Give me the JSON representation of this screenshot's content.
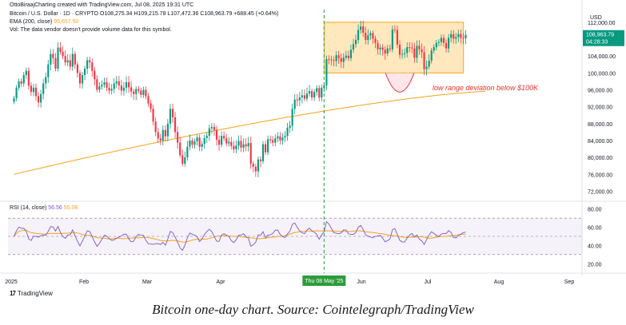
{
  "attribution": "OttoBiraajCharting created with TradingView.com, Jul 08, 2025 19:31 UTC",
  "legend": {
    "symbol_line": "Bitcoin / U.S. Dollar · 1D · CRYPTO",
    "ohlc": "O108,275.34 H109,215.78 L107,472.36 C108,963.79 +688.45 (+0.64%)",
    "ema_label": "EMA (200, close)",
    "ema_value": "95,657.50",
    "vol_note": "Vol: The data vendor doesn't provide volume data for this symbol.",
    "rsi_label": "RSI (14, close)",
    "rsi_value": "56.56",
    "rsi_ma_value": "55.08"
  },
  "currency": "USD",
  "price_tag": {
    "value": "108,963.79",
    "countdown": "04:28:33"
  },
  "annotation": "low range deviation below $100K",
  "crosshair_date": "Thu 08 May '25",
  "tradingview_brand": "TradingView",
  "caption": "Bitcoin one-day chart. Source: Cointelegraph/TradingView",
  "colors": {
    "up": "#089981",
    "down": "#f23645",
    "ema": "#f7a21b",
    "rsi": "#7e57c2",
    "range_box": "#ffe0a8",
    "range_border": "#f7a21b",
    "crosshair": "#2c9c3a"
  },
  "chart_data": {
    "type": "candlestick",
    "price_axis": {
      "ticks": [
        "112,000.00",
        "108,000.00",
        "104,000.00",
        "100,000.00",
        "96,000.00",
        "92,000.00",
        "88,000.00",
        "84,000.00",
        "80,000.00",
        "76,000.00",
        "72,000.00"
      ],
      "range": [
        70000,
        115000
      ]
    },
    "rsi_axis": {
      "ticks": [
        "80.00",
        "60.00",
        "40.00",
        "20.00"
      ],
      "range": [
        15,
        85
      ],
      "bands": [
        30,
        70
      ]
    },
    "time_axis": [
      "2025",
      "Feb",
      "Mar",
      "Apr",
      "Jun",
      "Jul",
      "Aug",
      "Sep"
    ],
    "range_box": {
      "from_index": 128,
      "to_index": 170,
      "low": 100000,
      "high": 112000
    },
    "close_series": [
      94000,
      96500,
      98000,
      97500,
      99500,
      100500,
      97000,
      95500,
      96500,
      94500,
      93000,
      95000,
      97500,
      99000,
      102000,
      104500,
      103500,
      101000,
      106000,
      105000,
      104000,
      102500,
      103000,
      101500,
      104500,
      102000,
      100000,
      97500,
      99500,
      101000,
      103000,
      102500,
      100500,
      98500,
      96000,
      96800,
      97200,
      97800,
      96500,
      95800,
      96200,
      97500,
      98000,
      97000,
      95800,
      96500,
      97800,
      96600,
      95600,
      95000,
      96200,
      95800,
      94800,
      96000,
      94500,
      92800,
      91500,
      88500,
      86000,
      84500,
      84000,
      86500,
      85000,
      88000,
      91500,
      89500,
      86000,
      83500,
      80500,
      78500,
      80000,
      82500,
      84000,
      83000,
      83800,
      84700,
      82500,
      83200,
      84600,
      85100,
      86900,
      87200,
      86500,
      84200,
      83000,
      85100,
      84500,
      83300,
      83700,
      82700,
      81900,
      82800,
      83900,
      82300,
      83100,
      82600,
      83400,
      78500,
      77800,
      76700,
      79500,
      79100,
      83100,
      81200,
      84300,
      84100,
      83500,
      84500,
      85000,
      84000,
      84700,
      85100,
      87000,
      87500,
      91500,
      93700,
      93500,
      94200,
      94700,
      93900,
      95100,
      95700,
      94200,
      95500,
      96400,
      94200,
      96500,
      97000,
      103300,
      103200,
      103000,
      102800,
      104200,
      103500,
      102600,
      103600,
      104100,
      103500,
      105500,
      106800,
      107800,
      110200,
      111000,
      109500,
      107800,
      108900,
      109400,
      108100,
      107100,
      105600,
      106000,
      105500,
      104600,
      105800,
      105600,
      110300,
      110200,
      106700,
      104300,
      104500,
      104700,
      106100,
      106000,
      105800,
      103600,
      106400,
      105600,
      104900,
      100900,
      101500,
      102900,
      105300,
      106100,
      107100,
      107300,
      108300,
      107100,
      105800,
      108300,
      109200,
      108100,
      108500,
      109200,
      108300,
      108200,
      109000
    ],
    "ema_series": {
      "start": 76000,
      "end": 95657.5
    },
    "rsi_series_note": "RSI 14 oscillating between ~25 and ~78; latest 56.56"
  }
}
